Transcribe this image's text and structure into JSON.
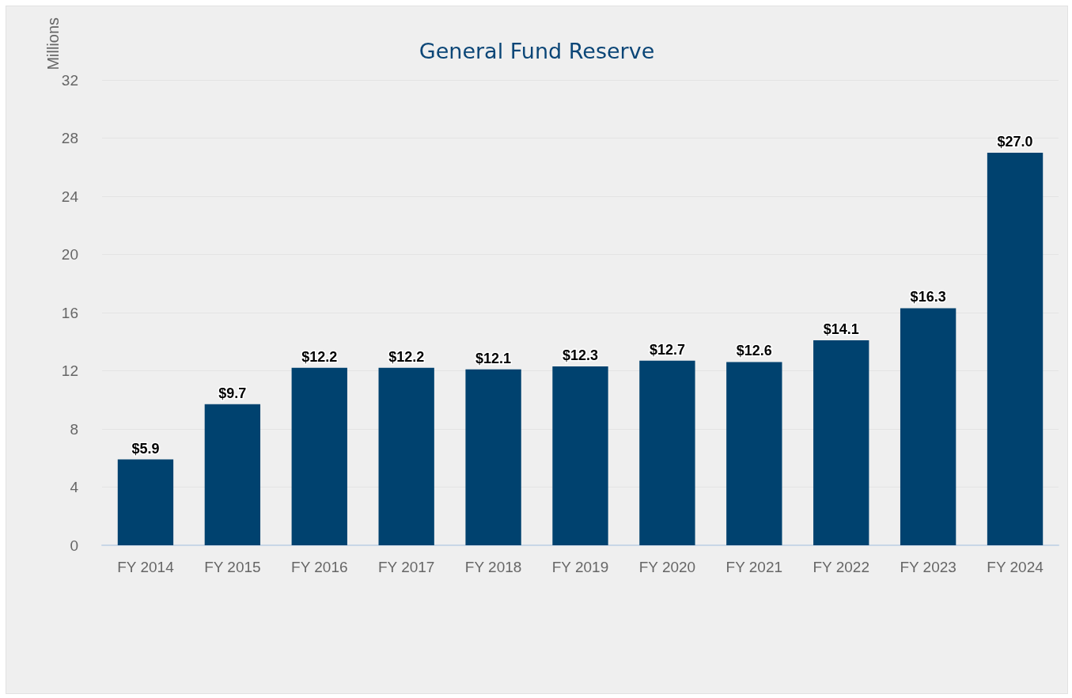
{
  "chart_data": {
    "type": "bar",
    "title": "General Fund Reserve",
    "ylabel": "Millions",
    "categories": [
      "FY 2014",
      "FY 2015",
      "FY 2016",
      "FY 2017",
      "FY 2018",
      "FY 2019",
      "FY 2020",
      "FY 2021",
      "FY 2022",
      "FY 2023",
      "FY 2024"
    ],
    "values": [
      5.9,
      9.7,
      12.2,
      12.2,
      12.1,
      12.3,
      12.7,
      12.6,
      14.1,
      16.3,
      27.0
    ],
    "value_labels": [
      "$5.9",
      "$9.7",
      "$12.2",
      "$12.2",
      "$12.1",
      "$12.3",
      "$12.7",
      "$12.6",
      "$14.1",
      "$16.3",
      "$27.0"
    ],
    "color": "#00426f",
    "ylim": [
      0,
      32
    ],
    "yticks": [
      0,
      4,
      8,
      12,
      16,
      20,
      24,
      28,
      32
    ],
    "grid": "y"
  }
}
